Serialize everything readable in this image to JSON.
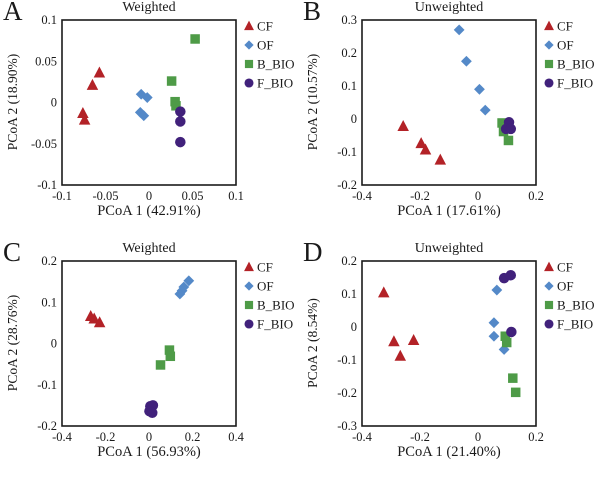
{
  "figure": {
    "background": "#ffffff",
    "axis_color": "#1a1a1a",
    "text_color": "#1a1a1a"
  },
  "legend": {
    "position": "right",
    "items": [
      {
        "label": "CF",
        "marker": "triangle",
        "color": "#B32227"
      },
      {
        "label": "OF",
        "marker": "diamond",
        "color": "#5489C8"
      },
      {
        "label": "B_BIO",
        "marker": "square",
        "color": "#4E9B47"
      },
      {
        "label": "F_BIO",
        "marker": "circle",
        "color": "#41217B"
      }
    ]
  },
  "chart_data": [
    {
      "type": "scatter",
      "panel": "A",
      "title": "Weighted",
      "xlabel": "PCoA 1 (42.91%)",
      "ylabel": "PCoA 2 (18.90%)",
      "xlim": [
        -0.1,
        0.1
      ],
      "ylim": [
        -0.1,
        0.1
      ],
      "xticks": [
        "-0.1",
        "-0.05",
        "0",
        "0.05",
        "0.1"
      ],
      "yticks": [
        "0.1",
        "0.05",
        "0",
        "-0.05",
        "-0.1"
      ],
      "grid": false,
      "legend_position": "right",
      "series": [
        {
          "name": "CF",
          "marker": "triangle",
          "color": "#B32227",
          "points": [
            [
              -0.057,
              0.036
            ],
            [
              -0.065,
              0.021
            ],
            [
              -0.076,
              -0.013
            ],
            [
              -0.074,
              -0.021
            ]
          ]
        },
        {
          "name": "OF",
          "marker": "diamond",
          "color": "#5489C8",
          "points": [
            [
              -0.009,
              0.01
            ],
            [
              -0.002,
              0.006
            ],
            [
              -0.01,
              -0.012
            ],
            [
              -0.006,
              -0.016
            ]
          ]
        },
        {
          "name": "B_BIO",
          "marker": "square",
          "color": "#4E9B47",
          "points": [
            [
              0.053,
              0.077
            ],
            [
              0.026,
              0.026
            ],
            [
              0.03,
              0.001
            ],
            [
              0.031,
              -0.004
            ]
          ]
        },
        {
          "name": "F_BIO",
          "marker": "circle",
          "color": "#41217B",
          "points": [
            [
              0.036,
              -0.011
            ],
            [
              0.036,
              -0.023
            ],
            [
              0.036,
              -0.048
            ]
          ]
        }
      ]
    },
    {
      "type": "scatter",
      "panel": "B",
      "title": "Unweighted",
      "xlabel": "PCoA 1 (17.61%)",
      "ylabel": "PCoA 2 (10.57%)",
      "xlim": [
        -0.4,
        0.2
      ],
      "ylim": [
        -0.2,
        0.3
      ],
      "xticks": [
        "-0.4",
        "-0.2",
        "0",
        "0.2"
      ],
      "yticks": [
        "0.3",
        "0.2",
        "0.1",
        "0",
        "-0.1",
        "-0.2"
      ],
      "grid": false,
      "legend_position": "right",
      "series": [
        {
          "name": "CF",
          "marker": "triangle",
          "color": "#B32227",
          "points": [
            [
              -0.258,
              -0.022
            ],
            [
              -0.196,
              -0.074
            ],
            [
              -0.181,
              -0.093
            ],
            [
              -0.13,
              -0.124
            ]
          ]
        },
        {
          "name": "OF",
          "marker": "diamond",
          "color": "#5489C8",
          "points": [
            [
              -0.065,
              0.27
            ],
            [
              -0.04,
              0.175
            ],
            [
              0.005,
              0.09
            ],
            [
              0.025,
              0.027
            ]
          ]
        },
        {
          "name": "B_BIO",
          "marker": "square",
          "color": "#4E9B47",
          "points": [
            [
              0.083,
              -0.012
            ],
            [
              0.088,
              -0.038
            ],
            [
              0.105,
              -0.065
            ]
          ]
        },
        {
          "name": "F_BIO",
          "marker": "circle",
          "color": "#41217B",
          "points": [
            [
              0.107,
              -0.01
            ],
            [
              0.097,
              -0.03
            ],
            [
              0.113,
              -0.03
            ]
          ]
        }
      ]
    },
    {
      "type": "scatter",
      "panel": "C",
      "title": "Weighted",
      "xlabel": "PCoA 1 (56.93%)",
      "ylabel": "PCoA 2 (28.76%)",
      "xlim": [
        -0.4,
        0.4
      ],
      "ylim": [
        -0.2,
        0.2
      ],
      "xticks": [
        "-0.4",
        "-0.2",
        "0",
        "0.2",
        "0.4"
      ],
      "yticks": [
        "0.2",
        "0.1",
        "0",
        "-0.1",
        "-0.2"
      ],
      "grid": false,
      "legend_position": "right",
      "series": [
        {
          "name": "CF",
          "marker": "triangle",
          "color": "#B32227",
          "points": [
            [
              -0.268,
              0.066
            ],
            [
              -0.252,
              0.06
            ],
            [
              -0.227,
              0.051
            ]
          ]
        },
        {
          "name": "OF",
          "marker": "diamond",
          "color": "#5489C8",
          "points": [
            [
              0.142,
              0.12
            ],
            [
              0.152,
              0.128
            ],
            [
              0.16,
              0.137
            ],
            [
              0.183,
              0.152
            ]
          ]
        },
        {
          "name": "B_BIO",
          "marker": "square",
          "color": "#4E9B47",
          "points": [
            [
              0.094,
              -0.016
            ],
            [
              0.098,
              -0.031
            ],
            [
              0.053,
              -0.052
            ]
          ]
        },
        {
          "name": "F_BIO",
          "marker": "circle",
          "color": "#41217B",
          "points": [
            [
              0.006,
              -0.152
            ],
            [
              0.018,
              -0.15
            ],
            [
              0.002,
              -0.164
            ],
            [
              0.015,
              -0.168
            ]
          ]
        }
      ]
    },
    {
      "type": "scatter",
      "panel": "D",
      "title": "Unweighted",
      "xlabel": "PCoA 1 (21.40%)",
      "ylabel": "PCoA 2 (8.54%)",
      "xlim": [
        -0.4,
        0.2
      ],
      "ylim": [
        -0.3,
        0.2
      ],
      "xticks": [
        "-0.4",
        "-0.2",
        "0",
        "0.2"
      ],
      "yticks": [
        "0.2",
        "0.1",
        "0",
        "-0.1",
        "-0.2",
        "-0.3"
      ],
      "grid": false,
      "legend_position": "right",
      "series": [
        {
          "name": "CF",
          "marker": "triangle",
          "color": "#B32227",
          "points": [
            [
              -0.325,
              0.104
            ],
            [
              -0.29,
              -0.044
            ],
            [
              -0.222,
              -0.04
            ],
            [
              -0.268,
              -0.088
            ]
          ]
        },
        {
          "name": "OF",
          "marker": "diamond",
          "color": "#5489C8",
          "points": [
            [
              0.065,
              0.112
            ],
            [
              0.055,
              0.013
            ],
            [
              0.055,
              -0.028
            ],
            [
              0.09,
              -0.068
            ]
          ]
        },
        {
          "name": "B_BIO",
          "marker": "square",
          "color": "#4E9B47",
          "points": [
            [
              0.094,
              -0.028
            ],
            [
              0.099,
              -0.047
            ],
            [
              0.12,
              -0.155
            ],
            [
              0.13,
              -0.198
            ]
          ]
        },
        {
          "name": "F_BIO",
          "marker": "circle",
          "color": "#41217B",
          "points": [
            [
              0.09,
              0.148
            ],
            [
              0.113,
              0.157
            ],
            [
              0.115,
              -0.015
            ]
          ]
        }
      ]
    }
  ]
}
